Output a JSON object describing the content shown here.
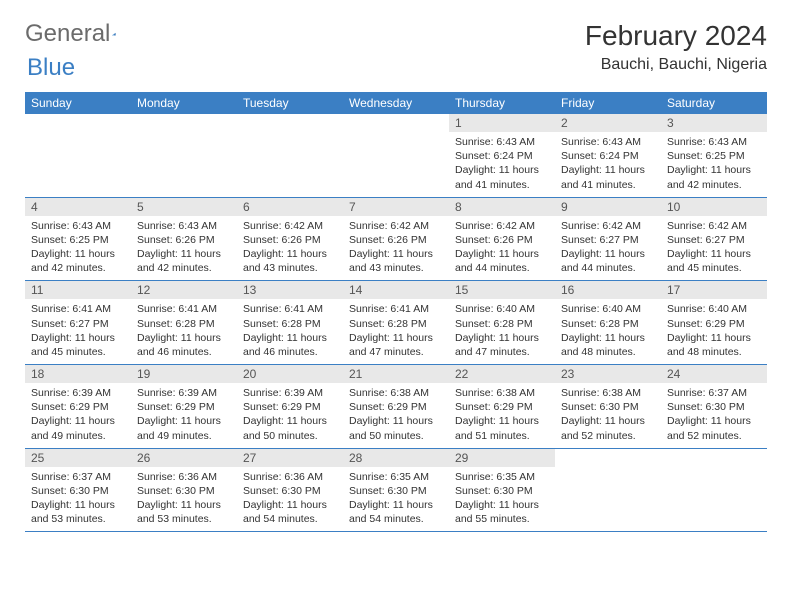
{
  "logo": {
    "text1": "General",
    "text2": "Blue",
    "tri_color": "#2f6fb3"
  },
  "title": "February 2024",
  "location": "Bauchi, Bauchi, Nigeria",
  "header_bg": "#3b7fc4",
  "daybar_bg": "#e8e8e8",
  "border_color": "#3b7fc4",
  "day_headers": [
    "Sunday",
    "Monday",
    "Tuesday",
    "Wednesday",
    "Thursday",
    "Friday",
    "Saturday"
  ],
  "weeks": [
    [
      null,
      null,
      null,
      null,
      {
        "n": "1",
        "sr": "6:43 AM",
        "ss": "6:24 PM",
        "dl": "11 hours and 41 minutes."
      },
      {
        "n": "2",
        "sr": "6:43 AM",
        "ss": "6:24 PM",
        "dl": "11 hours and 41 minutes."
      },
      {
        "n": "3",
        "sr": "6:43 AM",
        "ss": "6:25 PM",
        "dl": "11 hours and 42 minutes."
      }
    ],
    [
      {
        "n": "4",
        "sr": "6:43 AM",
        "ss": "6:25 PM",
        "dl": "11 hours and 42 minutes."
      },
      {
        "n": "5",
        "sr": "6:43 AM",
        "ss": "6:26 PM",
        "dl": "11 hours and 42 minutes."
      },
      {
        "n": "6",
        "sr": "6:42 AM",
        "ss": "6:26 PM",
        "dl": "11 hours and 43 minutes."
      },
      {
        "n": "7",
        "sr": "6:42 AM",
        "ss": "6:26 PM",
        "dl": "11 hours and 43 minutes."
      },
      {
        "n": "8",
        "sr": "6:42 AM",
        "ss": "6:26 PM",
        "dl": "11 hours and 44 minutes."
      },
      {
        "n": "9",
        "sr": "6:42 AM",
        "ss": "6:27 PM",
        "dl": "11 hours and 44 minutes."
      },
      {
        "n": "10",
        "sr": "6:42 AM",
        "ss": "6:27 PM",
        "dl": "11 hours and 45 minutes."
      }
    ],
    [
      {
        "n": "11",
        "sr": "6:41 AM",
        "ss": "6:27 PM",
        "dl": "11 hours and 45 minutes."
      },
      {
        "n": "12",
        "sr": "6:41 AM",
        "ss": "6:28 PM",
        "dl": "11 hours and 46 minutes."
      },
      {
        "n": "13",
        "sr": "6:41 AM",
        "ss": "6:28 PM",
        "dl": "11 hours and 46 minutes."
      },
      {
        "n": "14",
        "sr": "6:41 AM",
        "ss": "6:28 PM",
        "dl": "11 hours and 47 minutes."
      },
      {
        "n": "15",
        "sr": "6:40 AM",
        "ss": "6:28 PM",
        "dl": "11 hours and 47 minutes."
      },
      {
        "n": "16",
        "sr": "6:40 AM",
        "ss": "6:28 PM",
        "dl": "11 hours and 48 minutes."
      },
      {
        "n": "17",
        "sr": "6:40 AM",
        "ss": "6:29 PM",
        "dl": "11 hours and 48 minutes."
      }
    ],
    [
      {
        "n": "18",
        "sr": "6:39 AM",
        "ss": "6:29 PM",
        "dl": "11 hours and 49 minutes."
      },
      {
        "n": "19",
        "sr": "6:39 AM",
        "ss": "6:29 PM",
        "dl": "11 hours and 49 minutes."
      },
      {
        "n": "20",
        "sr": "6:39 AM",
        "ss": "6:29 PM",
        "dl": "11 hours and 50 minutes."
      },
      {
        "n": "21",
        "sr": "6:38 AM",
        "ss": "6:29 PM",
        "dl": "11 hours and 50 minutes."
      },
      {
        "n": "22",
        "sr": "6:38 AM",
        "ss": "6:29 PM",
        "dl": "11 hours and 51 minutes."
      },
      {
        "n": "23",
        "sr": "6:38 AM",
        "ss": "6:30 PM",
        "dl": "11 hours and 52 minutes."
      },
      {
        "n": "24",
        "sr": "6:37 AM",
        "ss": "6:30 PM",
        "dl": "11 hours and 52 minutes."
      }
    ],
    [
      {
        "n": "25",
        "sr": "6:37 AM",
        "ss": "6:30 PM",
        "dl": "11 hours and 53 minutes."
      },
      {
        "n": "26",
        "sr": "6:36 AM",
        "ss": "6:30 PM",
        "dl": "11 hours and 53 minutes."
      },
      {
        "n": "27",
        "sr": "6:36 AM",
        "ss": "6:30 PM",
        "dl": "11 hours and 54 minutes."
      },
      {
        "n": "28",
        "sr": "6:35 AM",
        "ss": "6:30 PM",
        "dl": "11 hours and 54 minutes."
      },
      {
        "n": "29",
        "sr": "6:35 AM",
        "ss": "6:30 PM",
        "dl": "11 hours and 55 minutes."
      },
      null,
      null
    ]
  ],
  "labels": {
    "sunrise": "Sunrise: ",
    "sunset": "Sunset: ",
    "daylight": "Daylight: "
  }
}
